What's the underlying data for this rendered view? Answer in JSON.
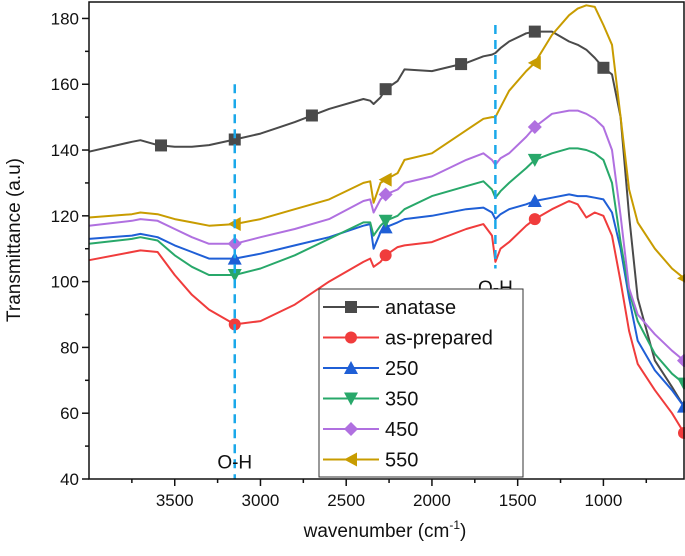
{
  "chart_data": {
    "type": "line",
    "xlabel": "wavenumber (cm",
    "xlabel_sup": "-1",
    "xlabel_end": ")",
    "ylabel": "Transmittance (a.u)",
    "xlim": [
      4000,
      530
    ],
    "ylim": [
      40,
      185
    ],
    "x_reversed": true,
    "x_ticks": [
      3500,
      3000,
      2500,
      2000,
      1500,
      1000
    ],
    "y_ticks": [
      40,
      60,
      80,
      100,
      120,
      140,
      160,
      180
    ],
    "grid": false,
    "legend_position": "bottom-center",
    "annotations": [
      {
        "text": "O-H",
        "x": 3150,
        "y": 45,
        "line_from": 160,
        "line_to": 40
      },
      {
        "text": "O-H",
        "x": 1630,
        "y": 98,
        "line_from": 178,
        "line_to": 104
      }
    ],
    "annotation_color": "#1aa8ea",
    "x": [
      4000,
      3750,
      3700,
      3600,
      3500,
      3400,
      3300,
      3150,
      3000,
      2800,
      2600,
      2400,
      2360,
      2340,
      2300,
      2270,
      2200,
      2160,
      2000,
      1800,
      1700,
      1650,
      1630,
      1600,
      1550,
      1450,
      1400,
      1300,
      1200,
      1150,
      1100,
      1050,
      1000,
      950,
      900,
      850,
      800,
      700,
      600,
      530
    ],
    "series": [
      {
        "name": "anatase",
        "color": "#4a4a4a",
        "marker": "square",
        "marker_x": [
          3580,
          3150,
          2700,
          2270,
          1830,
          1400,
          1000
        ],
        "values": [
          139.5,
          142.5,
          143,
          141.5,
          141,
          141,
          141.5,
          143.2,
          145,
          148.5,
          152.5,
          155.5,
          155,
          154,
          156,
          158.5,
          161,
          164.5,
          164,
          166.5,
          168.5,
          169,
          169.5,
          171,
          173,
          175.5,
          176,
          176,
          173,
          172,
          170.5,
          168,
          165,
          163,
          150,
          120,
          95,
          76,
          68,
          62
        ]
      },
      {
        "name": "as-prepared",
        "color": "#f03c3c",
        "marker": "circle",
        "marker_x": [
          3150,
          2270,
          1400,
          530
        ],
        "values": [
          106.5,
          109,
          109.5,
          109,
          102,
          96,
          91.5,
          87,
          88,
          93,
          100,
          106,
          107,
          104.5,
          106,
          108,
          110.5,
          111,
          112,
          116,
          117.5,
          114,
          106,
          110,
          112,
          117,
          119,
          122,
          124.5,
          123.5,
          119.5,
          121,
          120,
          114,
          100,
          85,
          75,
          67,
          60,
          54
        ]
      },
      {
        "name": "250",
        "color": "#1f5fd6",
        "marker": "triangle-up",
        "marker_x": [
          3150,
          2270,
          1400,
          530
        ],
        "values": [
          113,
          114,
          114.5,
          113.5,
          111,
          109,
          107,
          107,
          108.5,
          111,
          113.5,
          117,
          117.5,
          110,
          115,
          116.5,
          118,
          119,
          120,
          122,
          122.5,
          121,
          119,
          120.5,
          122,
          123.5,
          124.5,
          125.5,
          126.5,
          126,
          126,
          125.5,
          125,
          121,
          110,
          95,
          82,
          73,
          67,
          62
        ]
      },
      {
        "name": "350",
        "color": "#28a86a",
        "marker": "triangle-down",
        "marker_x": [
          3150,
          2270,
          1400,
          530
        ],
        "values": [
          111.5,
          113,
          113.5,
          112.5,
          108,
          104.5,
          102,
          102,
          104,
          108,
          113,
          118,
          118,
          114,
          117,
          118.5,
          120,
          122,
          126,
          129,
          130.5,
          128,
          125.5,
          127.5,
          130,
          134.5,
          137,
          139,
          140.5,
          140.5,
          140,
          139,
          137,
          130,
          112,
          97,
          88,
          78,
          72,
          69
        ]
      },
      {
        "name": "450",
        "color": "#b070e0",
        "marker": "diamond",
        "marker_x": [
          3150,
          2270,
          1400,
          530
        ],
        "values": [
          117,
          118.5,
          119,
          118.5,
          116,
          113.5,
          111.5,
          111.5,
          113.5,
          116,
          119,
          124.5,
          125,
          121,
          125,
          126.5,
          128,
          130,
          132,
          137,
          139,
          137,
          135.5,
          137.5,
          139,
          144,
          147,
          151,
          152,
          152,
          151,
          149.5,
          147,
          140,
          120,
          98,
          90,
          84,
          79,
          76
        ]
      },
      {
        "name": "550",
        "color": "#c89c00",
        "marker": "triangle-left",
        "marker_x": [
          3150,
          2270,
          1400,
          530
        ],
        "values": [
          119.5,
          120.5,
          121,
          120.5,
          119,
          118,
          117,
          117.5,
          119,
          122,
          125,
          130,
          130.5,
          124,
          130,
          131,
          133,
          137,
          139,
          146,
          149.5,
          150,
          150,
          153,
          158,
          164,
          166.5,
          175,
          181,
          183,
          184,
          183.5,
          178,
          172,
          150,
          128,
          118,
          110,
          104,
          101
        ]
      }
    ]
  }
}
